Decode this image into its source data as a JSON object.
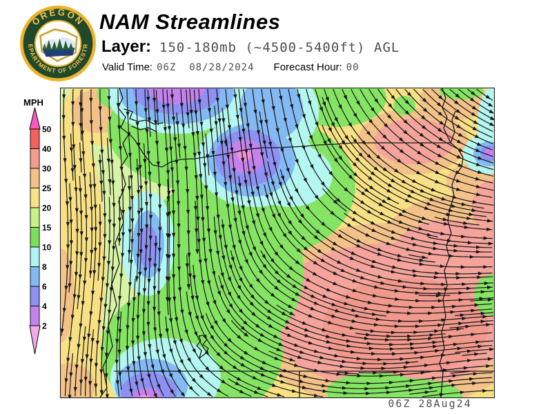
{
  "header": {
    "title": "NAM Streamlines",
    "layer_label": "Layer:",
    "layer_value": "150-180mb (~4500-5400ft) AGL",
    "valid_time_label": "Valid Time:",
    "valid_time_value": "06Z  08/28/2024",
    "forecast_hour_label": "Forecast Hour:",
    "forecast_hour_value": "00"
  },
  "logo": {
    "text_top": "OREGON",
    "text_bottom": "DEPARTMENT OF FORESTRY",
    "gold": "#edb32b",
    "dark_green": "#20492c",
    "navy": "#1f4077",
    "text_gold": "#f2c14e",
    "tree_green": "#265c33"
  },
  "legend": {
    "unit": "MPH",
    "tick_labels": [
      "50",
      "40",
      "30",
      "25",
      "20",
      "15",
      "10",
      "8",
      "6",
      "4",
      "2"
    ],
    "segment_colors_top_to_bottom": [
      "#f2615c",
      "#f49d8e",
      "#f2c289",
      "#f9e289",
      "#c9ef88",
      "#7ce05c",
      "#b2f5f0",
      "#84b9f4",
      "#8e90f2",
      "#c383ec"
    ],
    "over_arrow_color": "#f858c2",
    "under_arrow_color": "#f2aae8"
  },
  "map": {
    "timestamp": "06Z 28Aug24",
    "colors": {
      "stroke": "#141414",
      "map_base": "#d8f2a6",
      "yellow": "#f8e185",
      "orange": "#f3c289",
      "salmon": "#f4a49b",
      "salmon_core": "#f1998c",
      "green": "#85e463",
      "cyan": "#b4f6f0",
      "blue": "#84baf4",
      "blue_violet": "#8e90f2",
      "purple": "#c383ec",
      "pink": "#ee8fd8"
    }
  }
}
